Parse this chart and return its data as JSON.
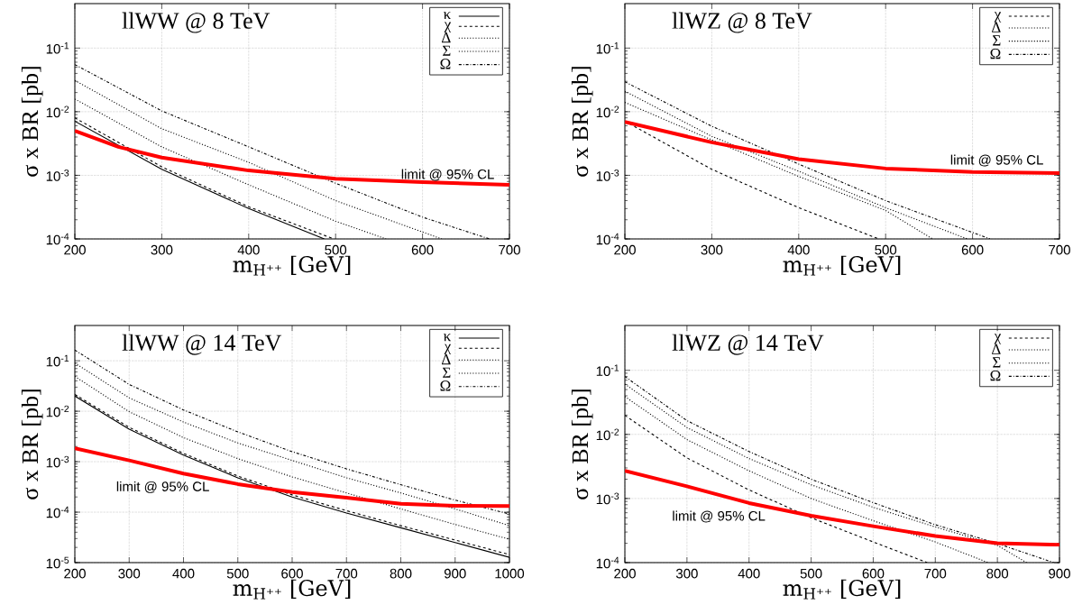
{
  "chart_data": [
    {
      "type": "line",
      "title": "llWW @ 8 TeV",
      "xlabel": "m$_{H⁺⁺}$ [GeV]",
      "ylabel": "σ x BR [pb]",
      "log": "y",
      "grid": true,
      "legend": "top right",
      "xlim": [
        200,
        700
      ],
      "ylim": [
        0.0001,
        0.5
      ],
      "xticks": [
        200,
        300,
        400,
        500,
        600,
        700
      ],
      "yticks": [
        {
          "value": 0.0001,
          "label": "10$^{-4}$"
        },
        {
          "value": 0.001,
          "label": "10$^{-3}$"
        },
        {
          "value": 0.01,
          "label": "10$^{-2}$"
        },
        {
          "value": 0.1,
          "label": "10$^{-1}$"
        }
      ],
      "series": [
        {
          "name": "κ",
          "color": "#000000",
          "line_style": "solid",
          "x": [
            200,
            300,
            400,
            487
          ],
          "values": [
            0.0071,
            0.00124,
            0.0003,
            0.0001
          ]
        },
        {
          "name": "χ",
          "color": "#000000",
          "line_style": "dashed",
          "x": [
            200,
            300,
            400,
            498
          ],
          "values": [
            0.008,
            0.00136,
            0.00032,
            0.0001
          ]
        },
        {
          "name": "Δ",
          "color": "#000000",
          "line_style": "dotted",
          "x": [
            200,
            300,
            400,
            500,
            558
          ],
          "values": [
            0.0158,
            0.0028,
            0.00071,
            0.00019,
            0.0001
          ]
        },
        {
          "name": "Σ",
          "color": "#000000",
          "line_style": "dotted",
          "x": [
            200,
            300,
            400,
            500,
            622
          ],
          "values": [
            0.031,
            0.0054,
            0.0016,
            0.0004,
            0.0001
          ]
        },
        {
          "name": "Ω",
          "color": "#000000",
          "line_style": "dashdot",
          "x": [
            200,
            300,
            400,
            500,
            600,
            677
          ],
          "values": [
            0.055,
            0.0103,
            0.0028,
            0.00075,
            0.00022,
            0.0001
          ]
        },
        {
          "color": "#ff0000",
          "line_style": "solid",
          "x": [
            200,
            250,
            300,
            400,
            500,
            600,
            700
          ],
          "values": [
            0.005,
            0.0028,
            0.0019,
            0.00119,
            0.00088,
            0.00078,
            0.00071
          ]
        }
      ],
      "annotations": [
        "limit @ 95% CL"
      ]
    },
    {
      "type": "line",
      "title": "llWZ @ 8 TeV",
      "xlabel": "m$_{H⁺⁺}$ [GeV]",
      "ylabel": "σ x BR [pb]",
      "log": "y",
      "grid": true,
      "legend": "top right",
      "xlim": [
        200,
        700
      ],
      "ylim": [
        0.0001,
        0.5
      ],
      "xticks": [
        200,
        300,
        400,
        500,
        600,
        700
      ],
      "yticks": [
        {
          "value": 0.0001,
          "label": "10$^{-4}$"
        },
        {
          "value": 0.001,
          "label": "10$^{-3}$"
        },
        {
          "value": 0.01,
          "label": "10$^{-2}$"
        },
        {
          "value": 0.1,
          "label": "10$^{-1}$"
        }
      ],
      "series": [
        {
          "name": "χ",
          "color": "#000000",
          "line_style": "dashed",
          "x": [
            200,
            300,
            400,
            492
          ],
          "values": [
            0.0071,
            0.00124,
            0.00031,
            0.0001
          ]
        },
        {
          "name": "Δ",
          "color": "#000000",
          "line_style": "dotted",
          "x": [
            200,
            300,
            400,
            500,
            554
          ],
          "values": [
            0.014,
            0.0036,
            0.00096,
            0.00028,
            0.0001
          ]
        },
        {
          "name": "Σ",
          "color": "#000000",
          "line_style": "dotted",
          "x": [
            200,
            300,
            400,
            500,
            594
          ],
          "values": [
            0.021,
            0.0041,
            0.00116,
            0.00031,
            0.0001
          ]
        },
        {
          "name": "Ω",
          "color": "#000000",
          "line_style": "dashdot",
          "x": [
            200,
            300,
            400,
            500,
            620
          ],
          "values": [
            0.0295,
            0.0059,
            0.0015,
            0.0004,
            0.0001
          ]
        },
        {
          "color": "#ff0000",
          "line_style": "solid",
          "x": [
            200,
            300,
            400,
            500,
            600,
            700
          ],
          "values": [
            0.0069,
            0.0033,
            0.0018,
            0.00128,
            0.00113,
            0.00108
          ]
        }
      ],
      "annotations": [
        "limit @ 95% CL"
      ]
    },
    {
      "type": "line",
      "title": "llWW @ 14 TeV",
      "xlabel": "m$_{H⁺⁺}$ [GeV]",
      "ylabel": "σ x BR [pb]",
      "log": "y",
      "grid": true,
      "legend": "top right",
      "xlim": [
        200,
        1000
      ],
      "ylim": [
        1e-05,
        0.5
      ],
      "xticks": [
        200,
        300,
        400,
        500,
        600,
        700,
        800,
        900,
        1000
      ],
      "yticks": [
        {
          "value": 1e-05,
          "label": "10$^{-5}$"
        },
        {
          "value": 0.0001,
          "label": "10$^{-4}$"
        },
        {
          "value": 0.001,
          "label": "10$^{-3}$"
        },
        {
          "value": 0.01,
          "label": "10$^{-2}$"
        },
        {
          "value": 0.1,
          "label": "10$^{-1}$"
        }
      ],
      "series": [
        {
          "name": "κ",
          "color": "#000000",
          "line_style": "solid",
          "x": [
            200,
            300,
            400,
            500,
            600,
            700,
            800,
            900,
            1000
          ],
          "values": [
            0.02,
            0.0044,
            0.00135,
            0.00048,
            0.0002,
            9.6e-05,
            4.9e-05,
            2.5e-05,
            1.27e-05
          ]
        },
        {
          "name": "χ",
          "color": "#000000",
          "line_style": "dashed",
          "x": [
            200,
            300,
            400,
            500,
            600,
            700,
            800,
            900,
            1000
          ],
          "values": [
            0.0215,
            0.0048,
            0.00146,
            0.00052,
            0.00022,
            0.000107,
            5.4e-05,
            2.8e-05,
            1.44e-05
          ]
        },
        {
          "name": "Δ",
          "color": "#000000",
          "line_style": "dotted",
          "x": [
            200,
            300,
            400,
            500,
            600,
            700,
            800,
            900,
            1000
          ],
          "values": [
            0.049,
            0.0098,
            0.003,
            0.00115,
            0.0005,
            0.00024,
            0.000116,
            5.7e-05,
            2.9e-05
          ]
        },
        {
          "name": "Σ",
          "color": "#000000",
          "line_style": "dotted",
          "x": [
            200,
            300,
            400,
            500,
            600,
            700,
            800,
            900,
            1000
          ],
          "values": [
            0.09,
            0.0184,
            0.0061,
            0.00235,
            0.00106,
            0.00048,
            0.00024,
            0.000116,
            5.4e-05
          ]
        },
        {
          "name": "Ω",
          "color": "#000000",
          "line_style": "dashdot",
          "x": [
            200,
            300,
            400,
            500,
            600,
            700,
            800,
            900,
            1000
          ],
          "values": [
            0.163,
            0.034,
            0.0106,
            0.0039,
            0.00158,
            0.00072,
            0.00035,
            0.000173,
            9.2e-05
          ]
        },
        {
          "color": "#ff0000",
          "line_style": "solid",
          "x": [
            200,
            300,
            400,
            500,
            600,
            700,
            800,
            900,
            1000
          ],
          "values": [
            0.00185,
            0.00106,
            0.00058,
            0.00036,
            0.00025,
            0.000193,
            0.000147,
            0.000134,
            0.000132
          ]
        }
      ],
      "annotations": [
        "limit @ 95% CL"
      ]
    },
    {
      "type": "line",
      "title": "llWZ @ 14 TeV",
      "xlabel": "m$_{H⁺⁺}$ [GeV]",
      "ylabel": "σ x BR [pb]",
      "log": "y",
      "grid": true,
      "legend": "top right",
      "xlim": [
        200,
        900
      ],
      "ylim": [
        0.0001,
        0.5
      ],
      "xticks": [
        200,
        300,
        400,
        500,
        600,
        700,
        800,
        900
      ],
      "yticks": [
        {
          "value": 0.0001,
          "label": "10$^{-4}$"
        },
        {
          "value": 0.001,
          "label": "10$^{-3}$"
        },
        {
          "value": 0.01,
          "label": "10$^{-2}$"
        },
        {
          "value": 0.1,
          "label": "10$^{-1}$"
        }
      ],
      "series": [
        {
          "name": "χ",
          "color": "#000000",
          "line_style": "dashed",
          "x": [
            200,
            300,
            400,
            500,
            600,
            687
          ],
          "values": [
            0.0198,
            0.0043,
            0.00136,
            0.0005,
            0.00021,
            0.0001
          ]
        },
        {
          "name": "Δ",
          "color": "#000000",
          "line_style": "dotted",
          "x": [
            200,
            300,
            400,
            500,
            600,
            700,
            785
          ],
          "values": [
            0.039,
            0.0083,
            0.0027,
            0.001,
            0.00045,
            0.00021,
            0.0001
          ]
        },
        {
          "name": "Σ",
          "color": "#000000",
          "line_style": "dotted",
          "x": [
            200,
            300,
            400,
            500,
            600,
            700,
            800,
            847
          ],
          "values": [
            0.061,
            0.0128,
            0.0042,
            0.00164,
            0.00073,
            0.00036,
            0.000186,
            0.0001
          ]
        },
        {
          "name": "Ω",
          "color": "#000000",
          "line_style": "dashdot",
          "x": [
            200,
            300,
            400,
            500,
            600,
            700,
            800,
            891
          ],
          "values": [
            0.08,
            0.0164,
            0.0054,
            0.002,
            0.00086,
            0.00039,
            0.000198,
            0.0001
          ]
        },
        {
          "color": "#ff0000",
          "line_style": "solid",
          "x": [
            200,
            300,
            400,
            500,
            600,
            700,
            800,
            900
          ],
          "values": [
            0.0027,
            0.00155,
            0.00085,
            0.00054,
            0.00037,
            0.00026,
            0.0002,
            0.00019
          ]
        }
      ],
      "annotations": [
        "limit @ 95% CL"
      ]
    }
  ]
}
